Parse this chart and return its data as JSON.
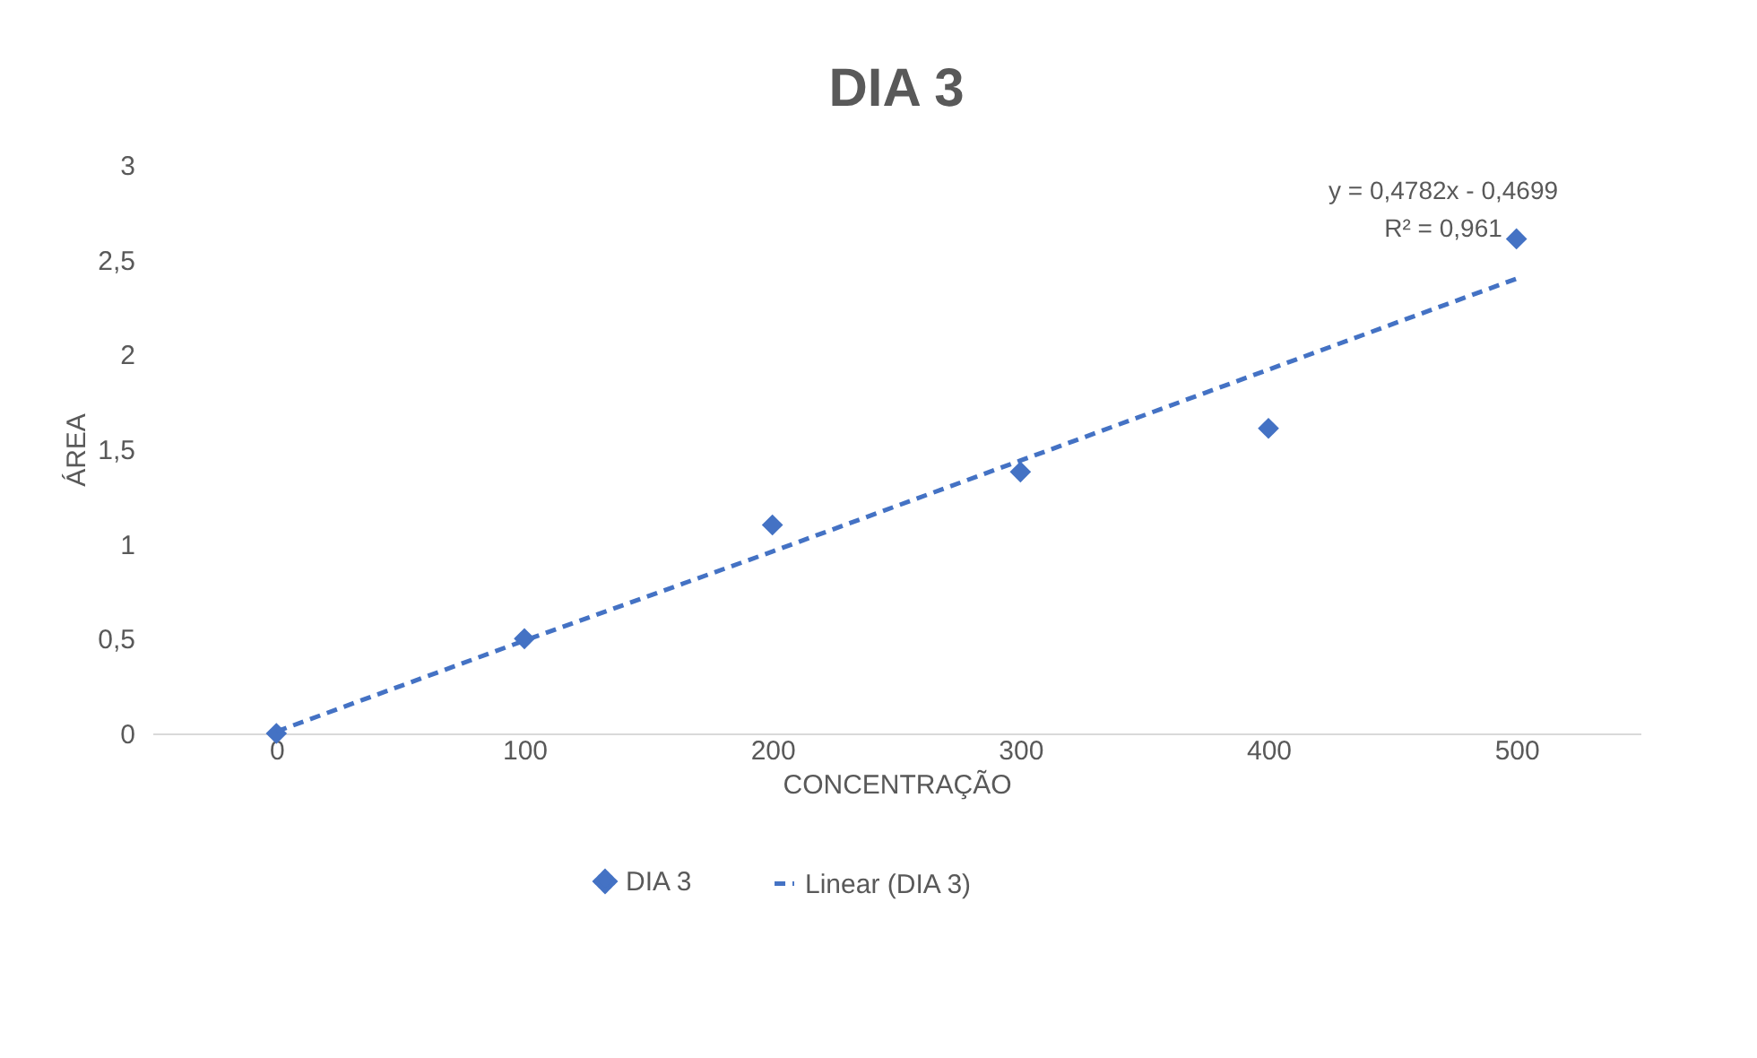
{
  "chart_data": {
    "type": "scatter",
    "title": "DIA 3",
    "xlabel": "CONCENTRAÇÃO",
    "ylabel": "ÁREA",
    "categories": [
      "0",
      "100",
      "200",
      "300",
      "400",
      "500"
    ],
    "series": [
      {
        "name": "DIA 3",
        "type": "scatter",
        "marker": "diamond",
        "color": "#4472c4",
        "values": [
          0,
          0.5,
          1.1,
          1.38,
          1.61,
          2.61
        ]
      },
      {
        "name": "Linear (DIA 3)",
        "type": "line",
        "line_style": "dashed",
        "color": "#4472c4",
        "values": [
          0.01,
          0.49,
          0.96,
          1.44,
          1.92,
          2.4
        ]
      }
    ],
    "ylim": [
      0,
      3
    ],
    "yticks": [
      0,
      {
        "value": 0.5,
        "label": "0,5"
      },
      1,
      {
        "value": 1.5,
        "label": "1,5"
      },
      2,
      {
        "value": 2.5,
        "label": "2,5"
      },
      3
    ],
    "annotations": [
      "y = 0,4782x - 0,4699",
      "R² = 0,961"
    ],
    "grid": false,
    "legend": "bottom"
  }
}
